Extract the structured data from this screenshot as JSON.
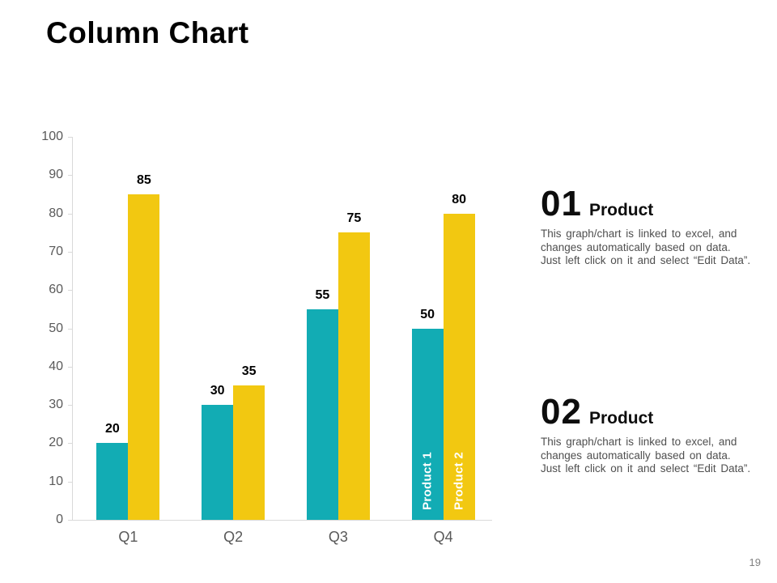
{
  "slide": {
    "title": "Column Chart",
    "page_number": "19"
  },
  "right_panel": {
    "sections": [
      {
        "number": "01",
        "heading": "Product",
        "lines": [
          "This graph/chart is linked to excel, and",
          "changes automatically based on data.",
          "Just left click on it and select “Edit Data”."
        ]
      },
      {
        "number": "02",
        "heading": "Product",
        "lines": [
          "This graph/chart is linked to excel, and",
          "changes automatically based on data.",
          "Just left click on it and select “Edit Data”."
        ]
      }
    ]
  },
  "chart_data": {
    "type": "bar",
    "title": "Column Chart",
    "categories": [
      "Q1",
      "Q2",
      "Q3",
      "Q4"
    ],
    "series": [
      {
        "name": "Product 1",
        "color": "#12ACB4",
        "values": [
          20,
          30,
          55,
          50
        ]
      },
      {
        "name": "Product 2",
        "color": "#F2C811",
        "values": [
          85,
          35,
          75,
          80
        ]
      }
    ],
    "xlabel": "",
    "ylabel": "",
    "ylim": [
      0,
      100
    ],
    "ytick_step": 10,
    "grid": false,
    "legend_position": "inside-last-group-bars",
    "axis_color": "#D9D9D9",
    "tick_label_color": "#595959",
    "value_labels_shown": true
  }
}
